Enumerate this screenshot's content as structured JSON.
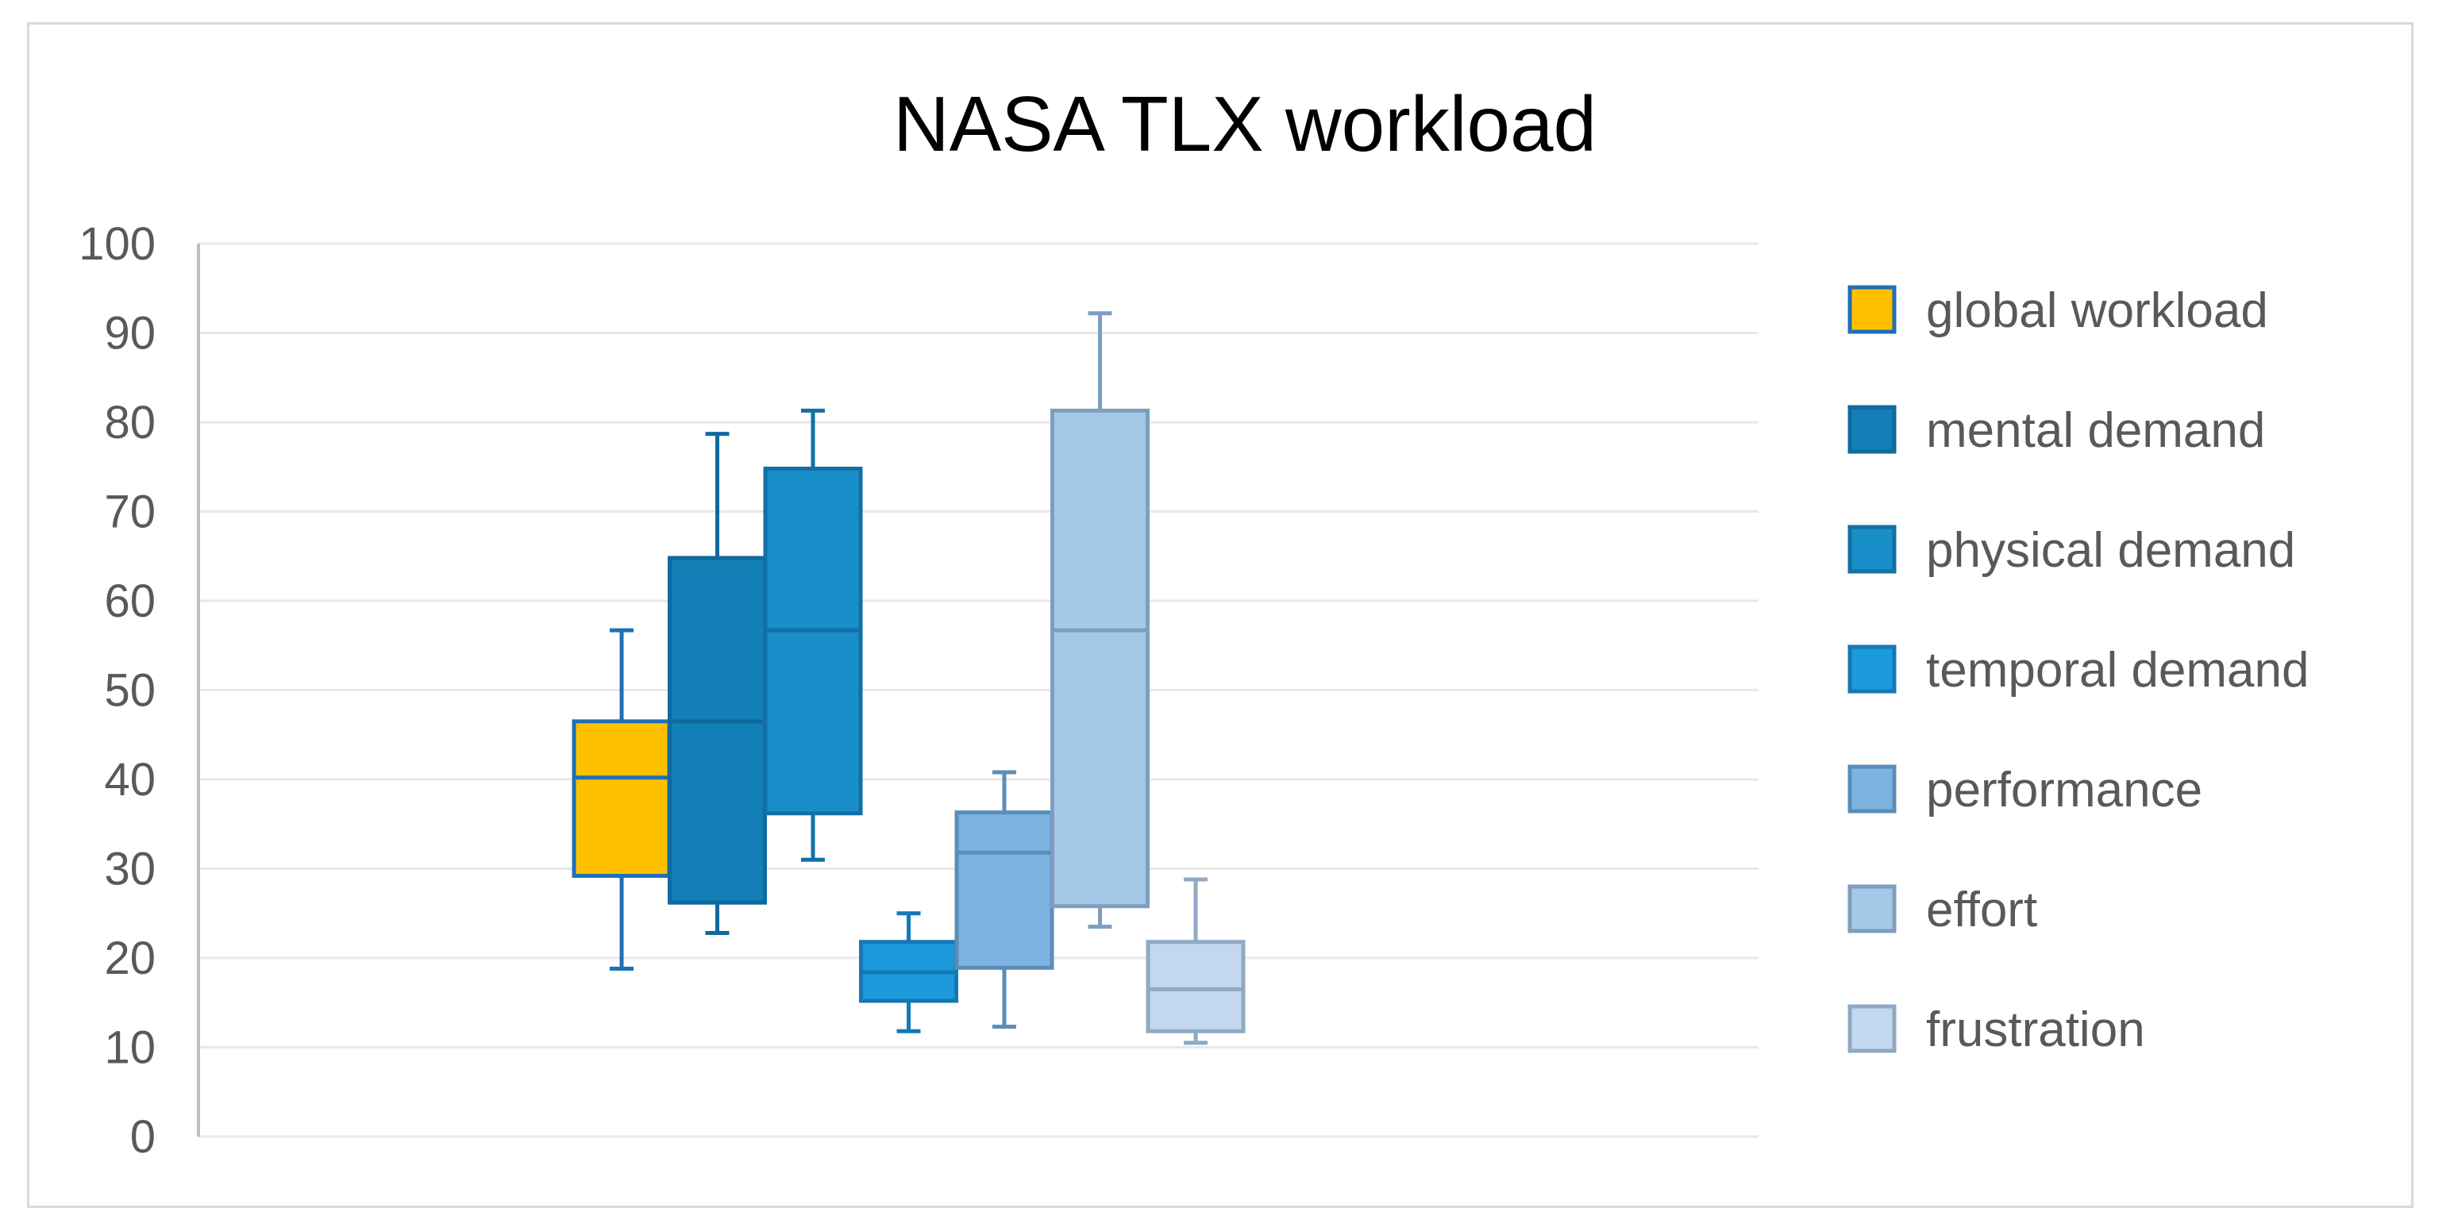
{
  "chart_data": {
    "type": "box",
    "title": "NASA TLX workload",
    "xlabel": "",
    "ylabel": "",
    "ylim": [
      0,
      100
    ],
    "yticks": [
      0,
      10,
      20,
      30,
      40,
      50,
      60,
      70,
      80,
      90,
      100
    ],
    "grid": true,
    "legend": "right",
    "series": [
      {
        "name": "global workload",
        "color": "#FFC000",
        "edge": "#1F6FB5",
        "min": 18.8,
        "q1": 29.2,
        "median": 40.2,
        "q3": 46.5,
        "max": 56.7
      },
      {
        "name": "mental demand",
        "color": "#137FB7",
        "edge": "#0F6A9E",
        "min": 22.8,
        "q1": 26.2,
        "median": 46.5,
        "q3": 64.8,
        "max": 78.7
      },
      {
        "name": "physical demand",
        "color": "#1A8EC8",
        "edge": "#1270A6",
        "min": 31.0,
        "q1": 36.2,
        "median": 56.7,
        "q3": 74.8,
        "max": 81.3
      },
      {
        "name": "temporal demand",
        "color": "#1C9ADB",
        "edge": "#1478B5",
        "min": 11.8,
        "q1": 15.2,
        "median": 18.4,
        "q3": 21.8,
        "max": 25.0
      },
      {
        "name": "performance",
        "color": "#7DB3E0",
        "edge": "#5A8DB8",
        "min": 12.3,
        "q1": 18.9,
        "median": 31.8,
        "q3": 36.3,
        "max": 40.8
      },
      {
        "name": "effort",
        "color": "#A6C8E8",
        "edge": "#7E9EBE",
        "min": 23.5,
        "q1": 25.8,
        "median": 56.7,
        "q3": 81.3,
        "max": 92.2
      },
      {
        "name": "frustration",
        "color": "#C3D8EE",
        "edge": "#8FA9C4",
        "min": 10.5,
        "q1": 11.8,
        "median": 16.5,
        "q3": 21.8,
        "max": 28.8
      }
    ]
  }
}
